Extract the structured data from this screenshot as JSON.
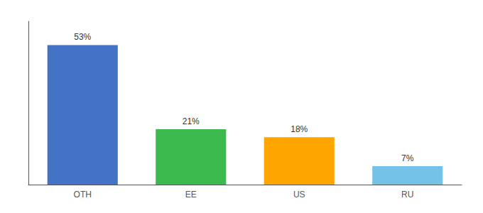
{
  "chart_data": {
    "type": "bar",
    "categories": [
      "OTH",
      "EE",
      "US",
      "RU"
    ],
    "values": [
      53,
      21,
      18,
      7
    ],
    "value_labels": [
      "53%",
      "21%",
      "18%",
      "7%"
    ],
    "data_labels": true,
    "colors": [
      "#4472c4",
      "#3dba4e",
      "#ffa500",
      "#74c2e8"
    ],
    "ylim": [
      0,
      62
    ],
    "tick_labels": "x",
    "grid": false
  }
}
